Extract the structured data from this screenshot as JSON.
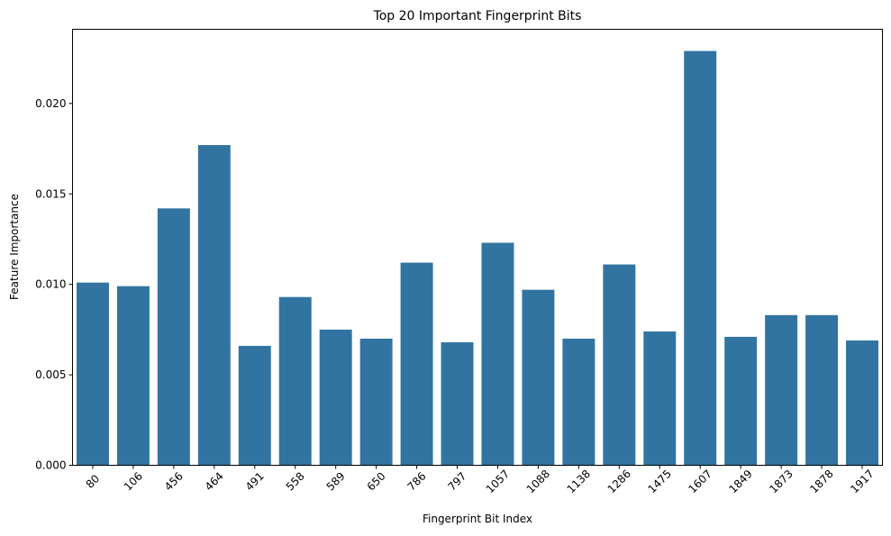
{
  "chart_data": {
    "type": "bar",
    "title": "Top 20 Important Fingerprint Bits",
    "xlabel": "Fingerprint Bit Index",
    "ylabel": "Feature Importance",
    "categories": [
      "80",
      "106",
      "456",
      "464",
      "491",
      "558",
      "589",
      "650",
      "786",
      "797",
      "1057",
      "1088",
      "1138",
      "1286",
      "1475",
      "1607",
      "1849",
      "1873",
      "1878",
      "1917"
    ],
    "values": [
      0.0101,
      0.0099,
      0.0142,
      0.0177,
      0.0066,
      0.0093,
      0.0075,
      0.007,
      0.0112,
      0.0068,
      0.0123,
      0.0097,
      0.007,
      0.0111,
      0.0074,
      0.0229,
      0.0071,
      0.0083,
      0.0083,
      0.0069
    ],
    "ylim": [
      0,
      0.0241
    ],
    "yticks": [
      "0.000",
      "0.005",
      "0.010",
      "0.015",
      "0.020"
    ],
    "ytick_values": [
      0,
      0.005,
      0.01,
      0.015,
      0.02
    ],
    "xtick_rotation": "45deg",
    "grid": false,
    "bar_color": "#3274a1"
  }
}
